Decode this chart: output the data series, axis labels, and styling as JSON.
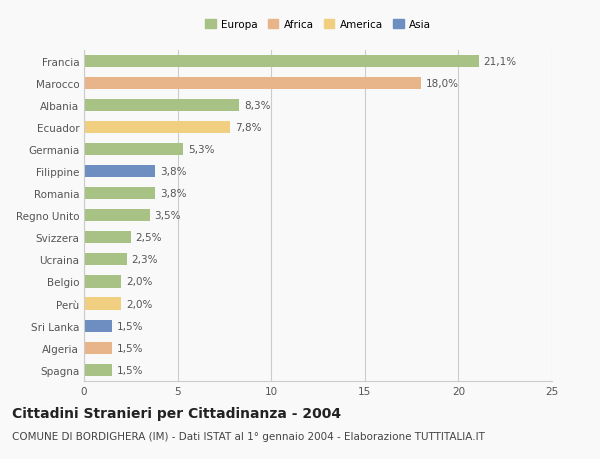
{
  "categories": [
    "Francia",
    "Marocco",
    "Albania",
    "Ecuador",
    "Germania",
    "Filippine",
    "Romania",
    "Regno Unito",
    "Svizzera",
    "Ucraina",
    "Belgio",
    "Perù",
    "Sri Lanka",
    "Algeria",
    "Spagna"
  ],
  "values": [
    21.1,
    18.0,
    8.3,
    7.8,
    5.3,
    3.8,
    3.8,
    3.5,
    2.5,
    2.3,
    2.0,
    2.0,
    1.5,
    1.5,
    1.5
  ],
  "labels": [
    "21,1%",
    "18,0%",
    "8,3%",
    "7,8%",
    "5,3%",
    "3,8%",
    "3,8%",
    "3,5%",
    "2,5%",
    "2,3%",
    "2,0%",
    "2,0%",
    "1,5%",
    "1,5%",
    "1,5%"
  ],
  "colors": [
    "#a8c185",
    "#e8b48a",
    "#a8c185",
    "#f0d080",
    "#a8c185",
    "#6e8dc0",
    "#a8c185",
    "#a8c185",
    "#a8c185",
    "#a8c185",
    "#a8c185",
    "#f0d080",
    "#6e8dc0",
    "#e8b48a",
    "#a8c185"
  ],
  "legend_labels": [
    "Europa",
    "Africa",
    "America",
    "Asia"
  ],
  "legend_colors": [
    "#a8c185",
    "#e8b48a",
    "#f0d080",
    "#6e8dc0"
  ],
  "xlim": [
    0,
    25
  ],
  "xticks": [
    0,
    5,
    10,
    15,
    20,
    25
  ],
  "title": "Cittadini Stranieri per Cittadinanza - 2004",
  "subtitle": "COMUNE DI BORDIGHERA (IM) - Dati ISTAT al 1° gennaio 2004 - Elaborazione TUTTITALIA.IT",
  "bg_color": "#f9f9f9",
  "bar_height": 0.55,
  "grid_color": "#cccccc",
  "label_fontsize": 7.5,
  "tick_fontsize": 7.5,
  "title_fontsize": 10,
  "subtitle_fontsize": 7.5
}
